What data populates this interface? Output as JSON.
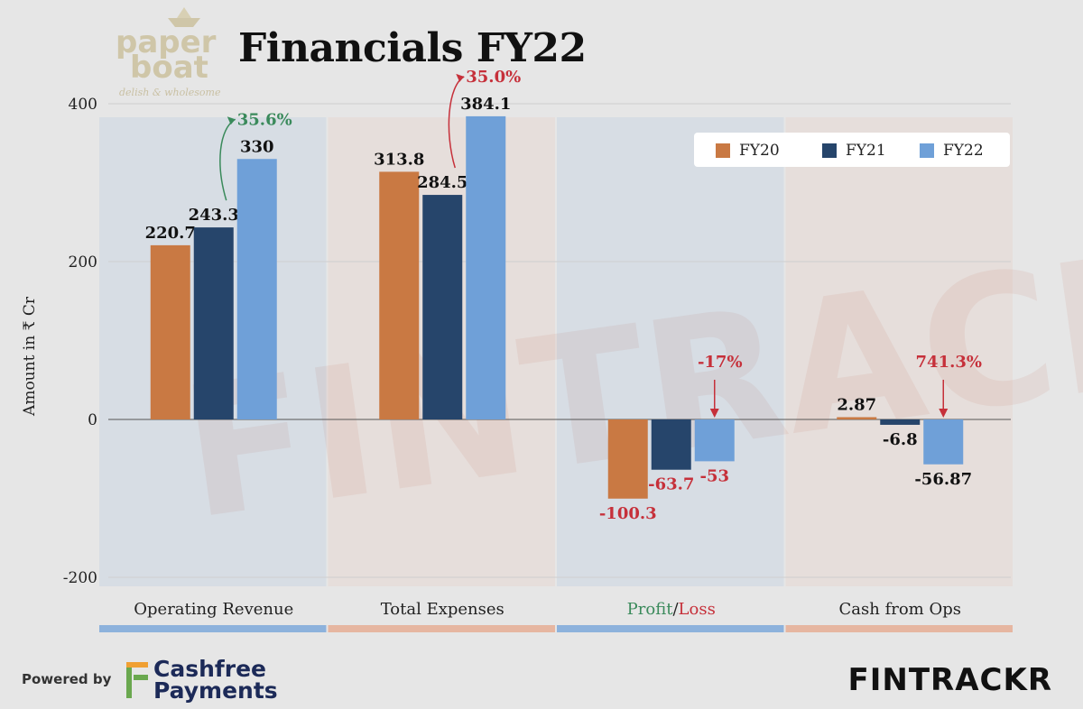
{
  "header": {
    "title": "Financials FY22",
    "brand_logo": {
      "line1": "paper",
      "line2": "boat",
      "tagline": "delish & wholesome"
    }
  },
  "chart_data": {
    "type": "bar",
    "title": "Financials FY22",
    "ylabel": "Amount in ₹ Cr",
    "xlabel": "",
    "ylim": [
      -200,
      400
    ],
    "yticks": [
      -200,
      0,
      200,
      400
    ],
    "grid": true,
    "legend_position": "top-right",
    "categories": [
      "Operating Revenue",
      "Total Expenses",
      "Profit/Loss",
      "Cash from Ops"
    ],
    "series": [
      {
        "name": "FY20",
        "color": "#c97943",
        "values": [
          220.7,
          313.8,
          -100.3,
          2.87
        ],
        "labels": [
          "220.7",
          "313.8",
          "-100.3",
          "2.87"
        ]
      },
      {
        "name": "FY21",
        "color": "#26456b",
        "values": [
          243.3,
          284.5,
          -63.7,
          -6.8
        ],
        "labels": [
          "243.3",
          "284.5",
          "-63.7",
          "-6.8"
        ]
      },
      {
        "name": "FY22",
        "color": "#6fa0d8",
        "values": [
          330,
          384.1,
          -53,
          -56.87
        ],
        "labels": [
          "330",
          "384.1",
          "-53",
          "-56.87"
        ]
      }
    ],
    "growth_annotations": [
      {
        "category": "Operating Revenue",
        "text": "35.6%",
        "color": "#3a8a5b"
      },
      {
        "category": "Total Expenses",
        "text": "35.0%",
        "color": "#c6303a"
      },
      {
        "category": "Profit/Loss",
        "text": "-17%",
        "color": "#c6303a"
      },
      {
        "category": "Cash from Ops",
        "text": "741.3%",
        "color": "#c6303a"
      }
    ],
    "profit_label": {
      "profit": "Profit",
      "separator": "/",
      "loss": "Loss",
      "profit_color": "#3a8a5b",
      "loss_color": "#c6303a"
    },
    "value_label_colors": {
      "positive": "#111111",
      "negative_profit": "#c6303a",
      "negative_other": "#111111"
    },
    "band_colors": [
      "#6fa0d8",
      "#e6a58a",
      "#6fa0d8",
      "#e6a58a"
    ]
  },
  "footer": {
    "powered_by": "Powered by",
    "sponsor_line1": "Cashfree",
    "sponsor_line2": "Payments",
    "brand": "FINTRACKR",
    "watermark": "FINTRACKR"
  }
}
